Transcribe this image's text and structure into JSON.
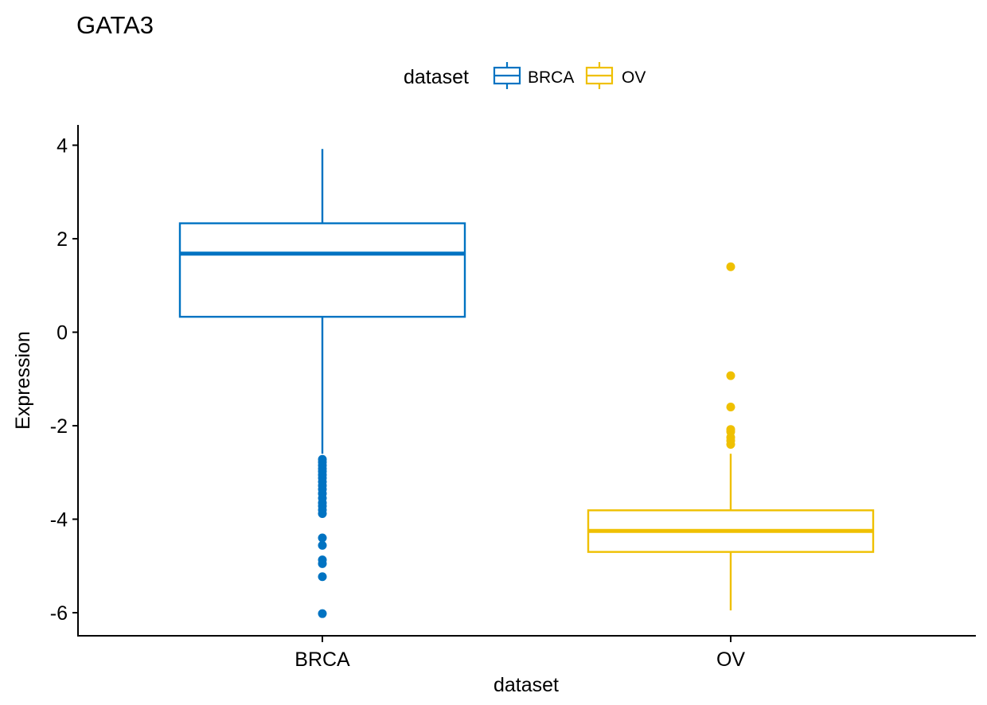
{
  "chart_data": {
    "type": "boxplot",
    "title": "GATA3",
    "xlabel": "dataset",
    "ylabel": "Expression",
    "ylim": [
      -6.5,
      4.4
    ],
    "yticks": [
      4,
      2,
      0,
      -2,
      -4,
      -6
    ],
    "ytick_labels": [
      "4",
      "2",
      "0",
      "-2",
      "-4",
      "-6"
    ],
    "grid": false,
    "legend": {
      "title": "dataset",
      "placement": "top"
    },
    "categories": [
      "BRCA",
      "OV"
    ],
    "series": [
      {
        "name": "BRCA",
        "color": "#0073C2",
        "whisker_low": -2.6,
        "q1": 0.33,
        "median": 1.68,
        "q3": 2.33,
        "whisker_high": 3.92,
        "outliers": [
          -2.72,
          -2.78,
          -2.85,
          -2.92,
          -2.98,
          -3.05,
          -3.12,
          -3.2,
          -3.28,
          -3.36,
          -3.45,
          -3.55,
          -3.65,
          -3.72,
          -3.8,
          -3.88,
          -4.4,
          -4.56,
          -4.87,
          -4.95,
          -5.23,
          -6.02
        ]
      },
      {
        "name": "OV",
        "color": "#EFC000",
        "whisker_low": -5.95,
        "q1": -4.7,
        "median": -4.25,
        "q3": -3.81,
        "whisker_high": -2.6,
        "outliers": [
          1.4,
          -0.93,
          -1.6,
          -2.08,
          -2.13,
          -2.25,
          -2.32,
          -2.4
        ]
      }
    ]
  }
}
